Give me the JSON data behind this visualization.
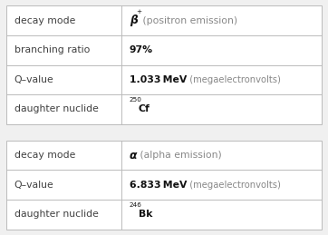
{
  "background_color": "#f0f0f0",
  "table_bg": "#ffffff",
  "border_color": "#bbbbbb",
  "text_color_label": "#404040",
  "text_color_value": "#111111",
  "text_color_light": "#888888",
  "col_split": 0.365,
  "table1_rows": [
    {
      "label": "decay mode",
      "value_parts": [
        {
          "text": "β",
          "style": "italic_bold"
        },
        {
          "text": "+",
          "style": "super"
        },
        {
          "text": " (positron emission)",
          "style": "normal_gray"
        }
      ]
    },
    {
      "label": "branching ratio",
      "value_parts": [
        {
          "text": "97%",
          "style": "bold"
        }
      ]
    },
    {
      "label": "Q–value",
      "value_parts": [
        {
          "text": "1.033 MeV",
          "style": "bold"
        },
        {
          "text": "  (megaelectronvolts)",
          "style": "light"
        }
      ]
    },
    {
      "label": "daughter nuclide",
      "value_parts": [
        {
          "text": "250",
          "style": "super"
        },
        {
          "text": "Cf",
          "style": "bold"
        }
      ]
    }
  ],
  "table2_rows": [
    {
      "label": "decay mode",
      "value_parts": [
        {
          "text": "α",
          "style": "italic_bold"
        },
        {
          "text": " (alpha emission)",
          "style": "normal_gray"
        }
      ]
    },
    {
      "label": "Q–value",
      "value_parts": [
        {
          "text": "6.833 MeV",
          "style": "bold"
        },
        {
          "text": "  (megaelectronvolts)",
          "style": "light"
        }
      ]
    },
    {
      "label": "daughter nuclide",
      "value_parts": [
        {
          "text": "246",
          "style": "super"
        },
        {
          "text": "Bk",
          "style": "bold"
        }
      ]
    }
  ],
  "fig_width": 3.62,
  "fig_height": 2.59,
  "dpi": 100,
  "label_fontsize": 7.8,
  "value_fontsize": 7.8,
  "super_fontsize": 5.2,
  "light_fontsize": 7.2
}
